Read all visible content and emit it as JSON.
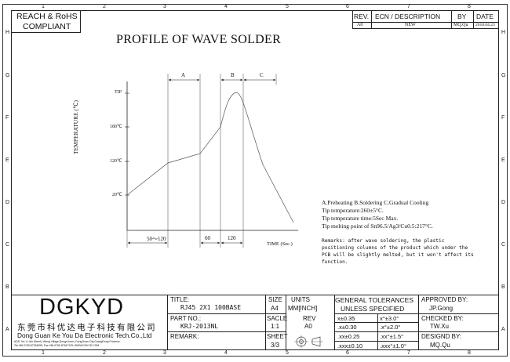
{
  "compliance": {
    "line1": "REACH & RoHS",
    "line2": "COMPLIANT"
  },
  "revision_table": {
    "headers": {
      "rev": "REV.",
      "ecn": "ECN / DESCRIPTION",
      "by": "BY",
      "date": "DATE"
    },
    "rows": [
      {
        "rev": "A0",
        "ecn": "NEW",
        "by": "MQ.Qu",
        "date": "2018.04.23"
      }
    ]
  },
  "zones": {
    "columns": [
      "1",
      "2",
      "3",
      "4",
      "5",
      "6",
      "7",
      "8"
    ],
    "rows": [
      "H",
      "G",
      "F",
      "E",
      "D",
      "C",
      "B",
      "A"
    ]
  },
  "drawing": {
    "title": "PROFILE OF WAVE SOLDER",
    "y_axis_label": "TEMPERATURE (℃)",
    "y_ticks": [
      "TIP",
      "180℃",
      "120℃",
      "20℃"
    ],
    "phase_labels": [
      "A",
      "B",
      "C"
    ],
    "time_segments": [
      "50～120",
      "60",
      "120"
    ],
    "x_axis_label": "TIME (Sec.)"
  },
  "chart_data": {
    "type": "line",
    "title": "PROFILE OF WAVE SOLDER",
    "ylabel": "TEMPERATURE (℃)",
    "xlabel": "TIME (Sec.)",
    "y_tick_labels": [
      "20℃",
      "120℃",
      "180℃",
      "TIP"
    ],
    "x_segments": [
      {
        "label": "50～120",
        "phase": "A"
      },
      {
        "label": "60",
        "phase": "B"
      },
      {
        "label": "120",
        "phase": "C"
      }
    ],
    "phases": {
      "A": "Preheating",
      "B": "Soldering",
      "C": "Gradual Cooling"
    }
  },
  "notes": {
    "lines": [
      "A.Preheating  B.Soldering  C.Gradual Cooling",
      "Tip temperature:260±5°C.",
      "Tip temperature time:5Sec Max.",
      "Tip melting point of Sn96.5/Ag3/Cu0.5:217°C."
    ],
    "remarks": [
      "Remarks: after wave soldering, the plastic",
      "positioning columns of the product  which under the",
      "PCB will be slightly melted, but it won't affect its",
      "function."
    ]
  },
  "company": {
    "logo": "DGKYD",
    "name_cn": "东莞市科优达电子科技有限公司",
    "name_en": "Dong Guan Ke You Da Electronic Tech.Co.,Ltd",
    "address": "ADD: No.1 Lixin Street,LiHeng Village,Dengxi town, DongGuan City,GuangDong Province",
    "contact": "Tel:+86-0769-87334699; Fax:+86-0769-87647129; WWW.DGKYD.COM"
  },
  "title_block": {
    "title_label": "TITLE:",
    "title_value": "RJ45 2X1 100BASE",
    "part_label": "PART NO.:",
    "part_value": "KRJ-2013NL",
    "remark_label": "REMARK:",
    "size_label": "SIZE",
    "size_value": "A4",
    "units_label": "UNITS",
    "units_value": "MM[INCH]",
    "scale_label": "SACLE",
    "scale_value": "1:1",
    "rev_label": "REV",
    "rev_value": "A0",
    "sheet_label": "SHEET",
    "sheet_value": "3/3",
    "tol_header1": "GENERAL TOLERANCES",
    "tol_header2": "UNLESS SPECIFIED",
    "tol": [
      {
        "lin": "x±0.35",
        "ang": "x°±3.0°"
      },
      {
        "lin": ".x±0.30",
        "ang": ".x°±2.0°"
      },
      {
        "lin": ".xx±0.25",
        "ang": ".xx°±1.5°"
      },
      {
        "lin": ".xxx±0.10",
        "ang": ".xxx°±1.0°"
      }
    ],
    "approved_label": "APPROVED BY:",
    "approved_value": "JP.Gong",
    "checked_label": "CHECKED BY:",
    "checked_value": "TW.Xu",
    "designed_label": "DESIGND BY:",
    "designed_value": "MQ.Qu"
  }
}
